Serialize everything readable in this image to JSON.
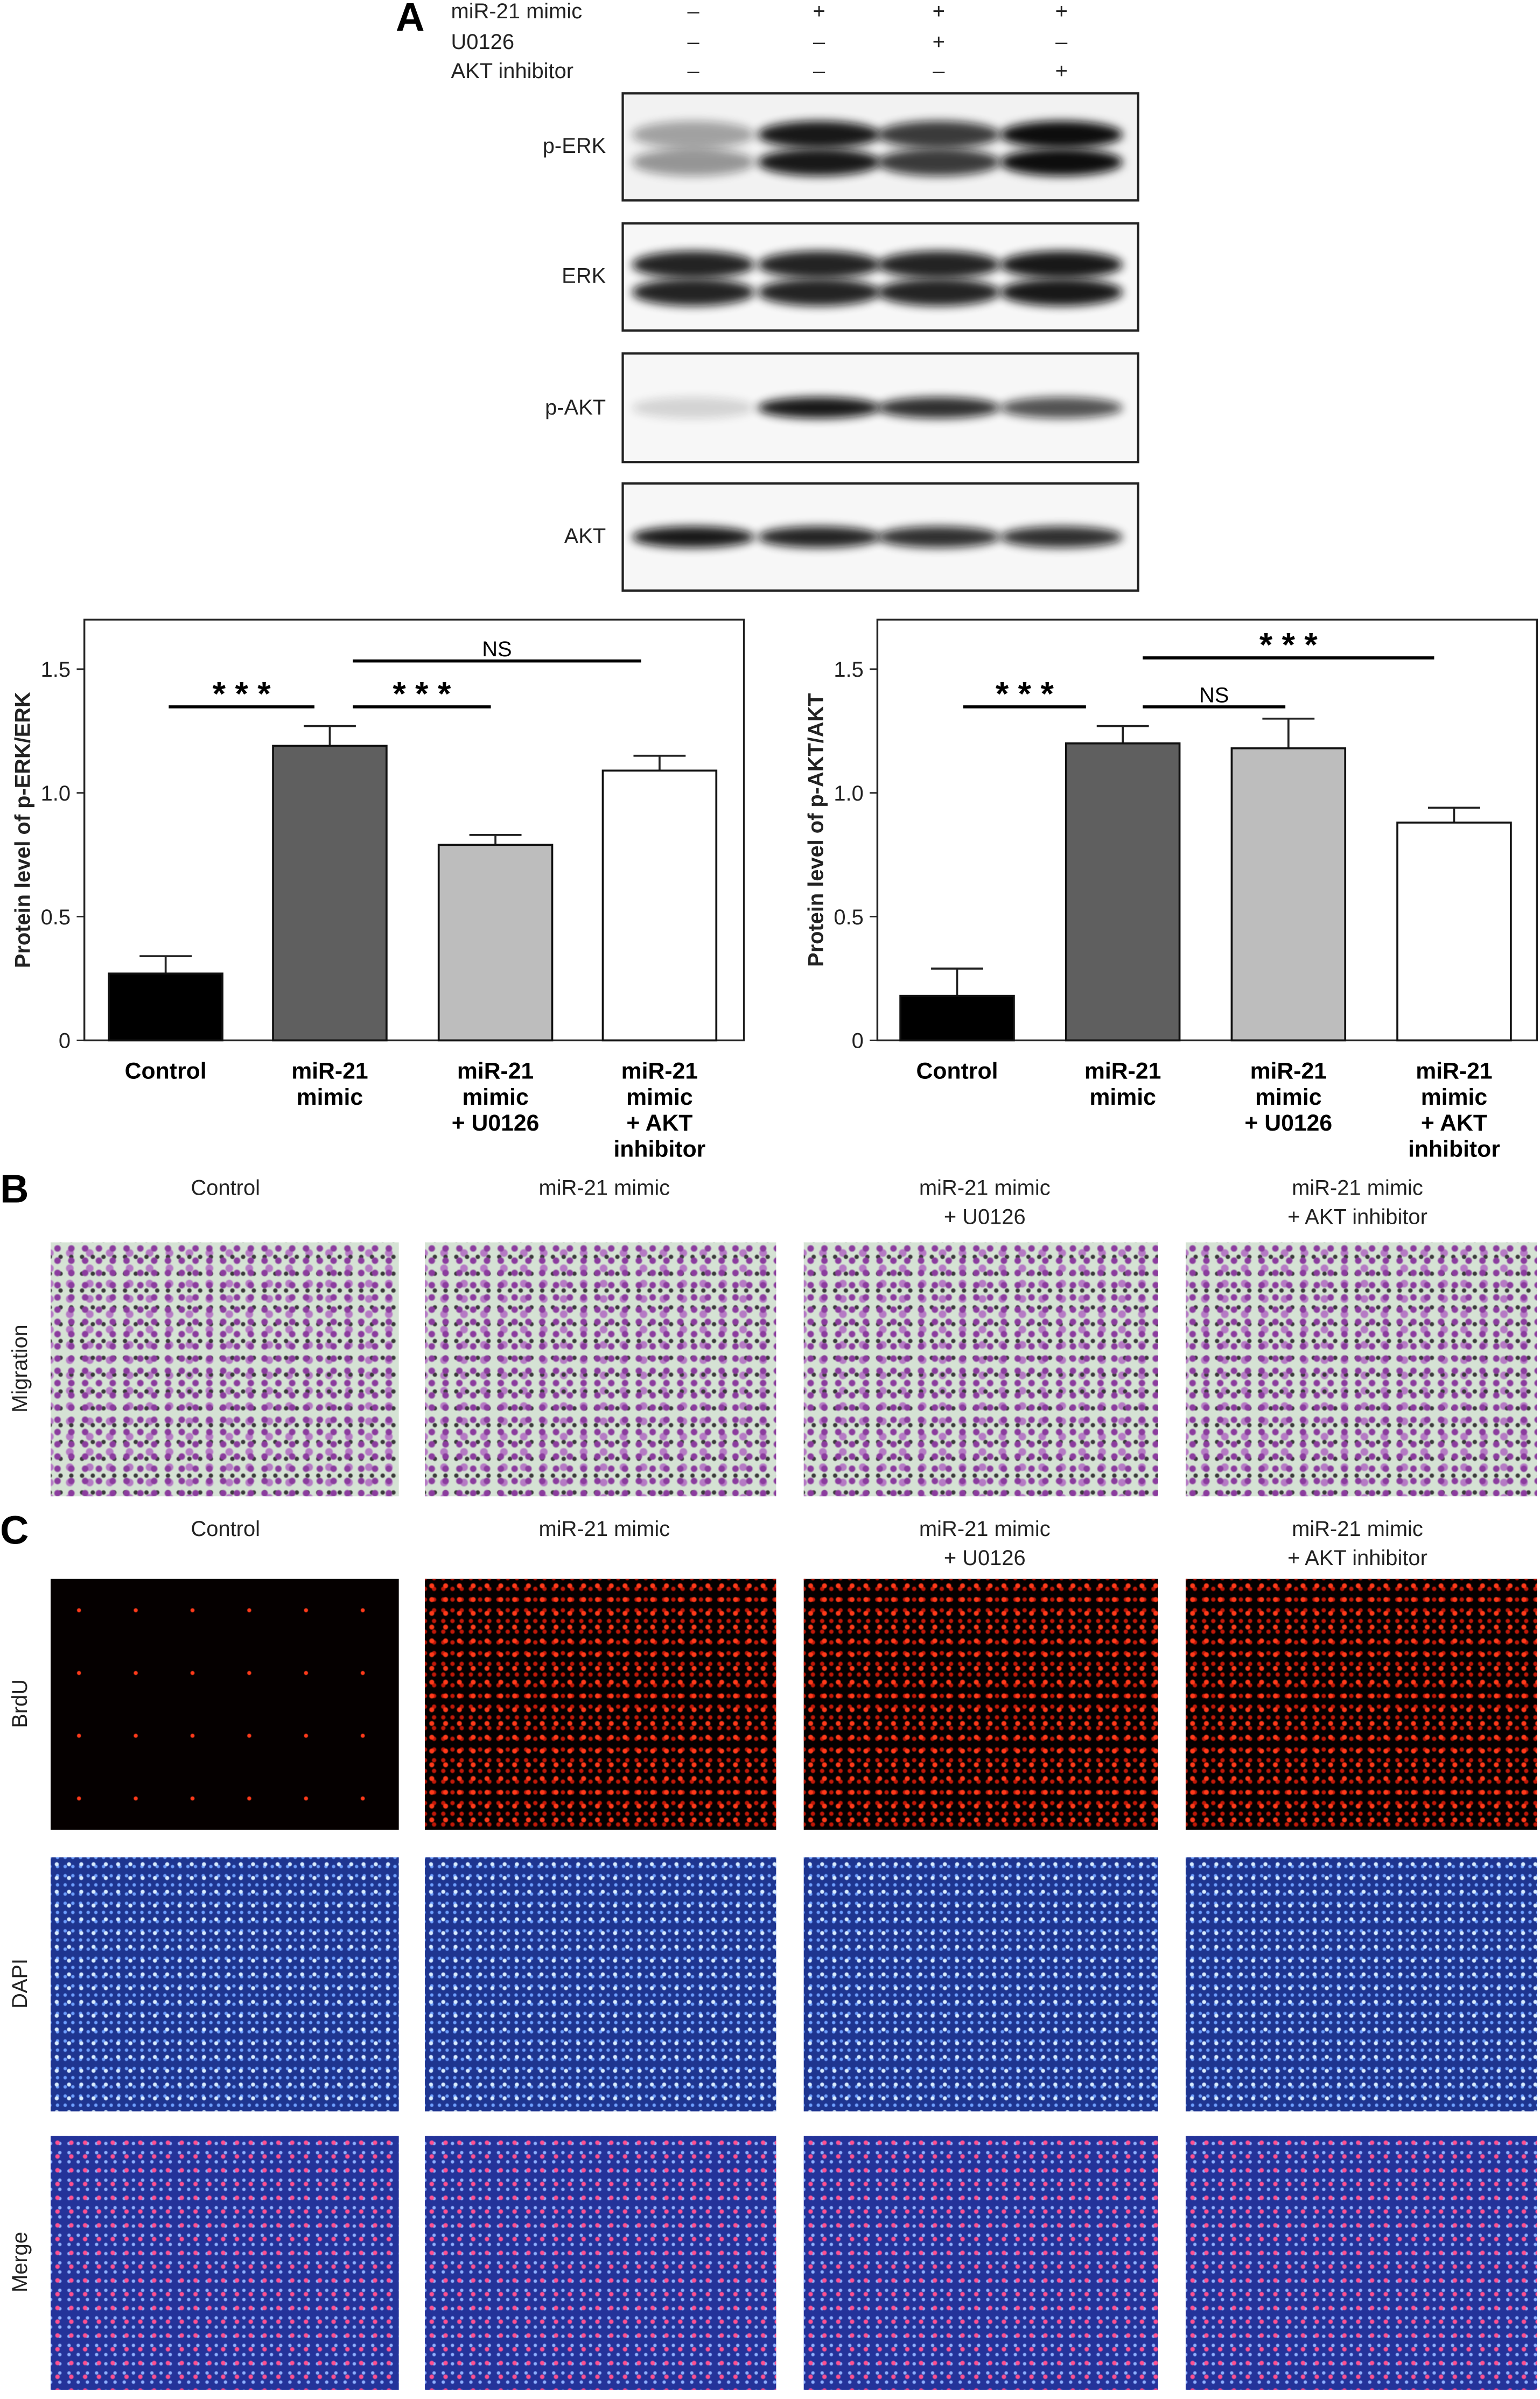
{
  "panel_labels": [
    "A",
    "B",
    "C"
  ],
  "blot": {
    "treatments": [
      {
        "name": "miR-21 mimic",
        "signs": [
          "–",
          "+",
          "+",
          "+"
        ]
      },
      {
        "name": "U0126",
        "signs": [
          "–",
          "–",
          "+",
          "–"
        ]
      },
      {
        "name": "AKT inhibitor",
        "signs": [
          "–",
          "–",
          "–",
          "+"
        ]
      }
    ],
    "proteins": [
      "p-ERK",
      "ERK",
      "p-AKT",
      "AKT"
    ]
  },
  "chart_data": [
    {
      "type": "bar",
      "ylabel": "Protein level of p-ERK/ERK",
      "categories": [
        "Control",
        "miR-21\nmimic",
        "miR-21\nmimic\n+ U0126",
        "miR-21\nmimic\n+ AKT\ninhibitor"
      ],
      "values": [
        0.27,
        1.19,
        0.79,
        1.09
      ],
      "errors": [
        0.07,
        0.08,
        0.04,
        0.06
      ],
      "colors": [
        "#000000",
        "#5f5f5f",
        "#bdbdbd",
        "#ffffff"
      ],
      "ylim": [
        0,
        1.7
      ],
      "yticks": [
        0,
        0.5,
        {
          "value": 1,
          "label": "1.0"
        },
        1.5
      ],
      "annotations": [
        "* * *",
        "* * *",
        "NS"
      ]
    },
    {
      "type": "bar",
      "ylabel": "Protein level of p-AKT/AKT",
      "categories": [
        "Control",
        "miR-21\nmimic",
        "miR-21\nmimic\n+ U0126",
        "miR-21\nmimic\n+ AKT\ninhibitor"
      ],
      "values": [
        0.18,
        1.2,
        1.18,
        0.88
      ],
      "errors": [
        0.11,
        0.07,
        0.12,
        0.06
      ],
      "colors": [
        "#000000",
        "#5f5f5f",
        "#bdbdbd",
        "#ffffff"
      ],
      "ylim": [
        0,
        1.7
      ],
      "yticks": [
        0,
        0.5,
        {
          "value": 1,
          "label": "1.0"
        },
        1.5
      ],
      "annotations": [
        "* * *",
        "NS",
        "* * *"
      ]
    }
  ],
  "migration": {
    "columns": [
      "Control",
      "miR-21 mimic",
      "miR-21 mimic\n+ U0126",
      "miR-21 mimic\n+ AKT inhibitor"
    ],
    "rows": [
      "Migration"
    ]
  },
  "fluorescence": {
    "columns": [
      "Control",
      "miR-21 mimic",
      "miR-21 mimic\n+ U0126",
      "miR-21 mimic\n+ AKT inhibitor"
    ],
    "rows": [
      "BrdU",
      "DAPI",
      "Merge"
    ]
  }
}
